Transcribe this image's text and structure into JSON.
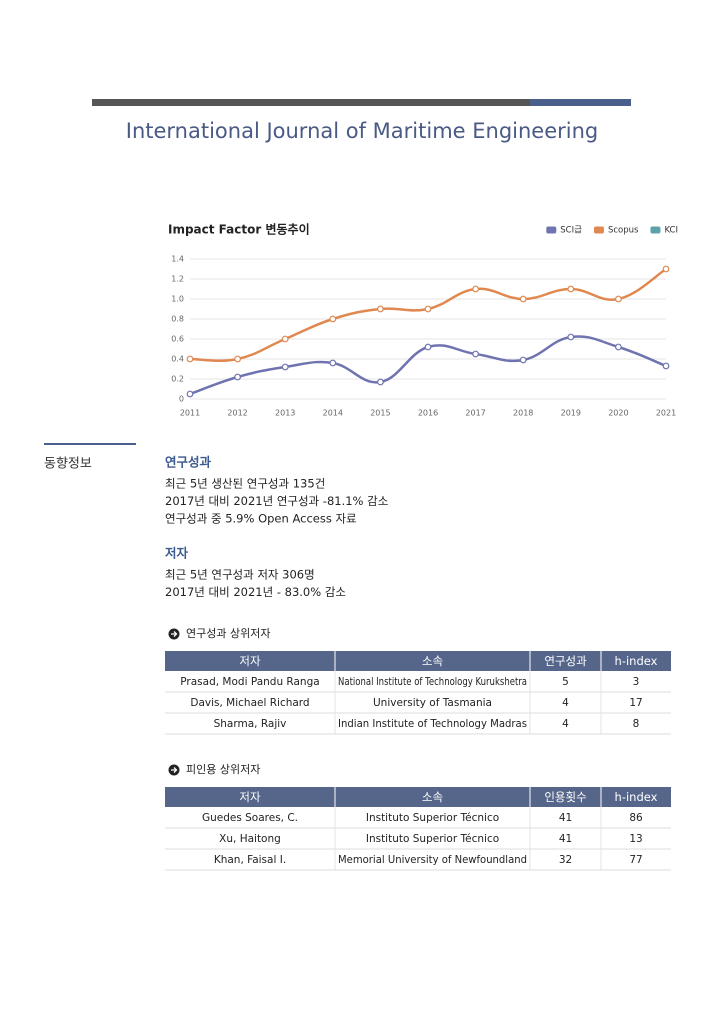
{
  "header": {
    "title": "International Journal of Maritime Engineering"
  },
  "chart_data": {
    "type": "line",
    "title": "Impact Factor 변동추이",
    "categories": [
      "2011",
      "2012",
      "2013",
      "2014",
      "2015",
      "2016",
      "2017",
      "2018",
      "2019",
      "2020",
      "2021"
    ],
    "series": [
      {
        "name": "SCI급",
        "color": "#6f73b0",
        "values": [
          0.05,
          0.22,
          0.32,
          0.36,
          0.17,
          0.52,
          0.45,
          0.39,
          0.62,
          0.52,
          0.33
        ]
      },
      {
        "name": "Scopus",
        "color": "#e0884f",
        "values": [
          0.4,
          0.4,
          0.6,
          0.8,
          0.9,
          0.9,
          1.1,
          1.0,
          1.1,
          1.0,
          1.3
        ]
      },
      {
        "name": "KCI",
        "color": "#5ba3a8",
        "values": [
          null,
          null,
          null,
          null,
          null,
          null,
          null,
          null,
          null,
          null,
          null
        ]
      }
    ],
    "ylim": [
      0,
      1.4
    ],
    "yticks": [
      0,
      0.2,
      0.4,
      0.6,
      0.8,
      {
        "value": 1,
        "label": "1.0"
      },
      1.2,
      1.4
    ],
    "grid": true,
    "legend": "top-right"
  },
  "trend": {
    "label": "동향정보",
    "sections": [
      {
        "title": "연구성과",
        "lines": [
          "최근 5년 생산된 연구성과 135건",
          "2017년 대비 2021년 연구성과 -81.1% 감소",
          "연구성과 중 5.9% Open Access 자료"
        ]
      },
      {
        "title": "저자",
        "lines": [
          "최근 5년 연구성과 저자 306명",
          "2017년 대비 2021년  - 83.0% 감소"
        ]
      }
    ],
    "tables": [
      {
        "title": "연구성과 상위저자",
        "columns": [
          "저자",
          "소속",
          "연구성과",
          "h-index"
        ],
        "rows": [
          [
            "Prasad, Modi Pandu Ranga",
            "National Institute of Technology Kurukshetra",
            5,
            3
          ],
          [
            "Davis, Michael Richard",
            "University of Tasmania",
            4,
            17
          ],
          [
            "Sharma, Rajiv",
            "Indian Institute of Technology Madras",
            4,
            8
          ]
        ]
      },
      {
        "title": "피인용 상위저자",
        "columns": [
          "저자",
          "소속",
          "인용횟수",
          "h-index"
        ],
        "rows": [
          [
            "Guedes Soares, C.",
            "Instituto Superior Técnico",
            41,
            86
          ],
          [
            "Xu, Haitong",
            "Instituto Superior Técnico",
            41,
            13
          ],
          [
            "Khan, Faisal I.",
            "Memorial University of Newfoundland",
            32,
            77
          ]
        ]
      }
    ]
  }
}
